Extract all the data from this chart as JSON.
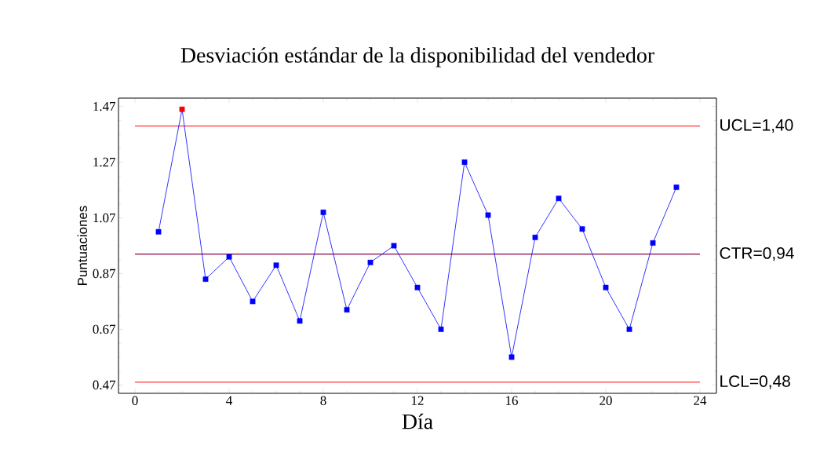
{
  "chart_data": {
    "type": "line",
    "title": "Desviación estándar de la disponibilidad del vendedor",
    "xlabel": "Día",
    "ylabel": "Puntuaciones",
    "x": [
      1,
      2,
      3,
      4,
      5,
      6,
      7,
      8,
      9,
      10,
      11,
      12,
      13,
      14,
      15,
      16,
      17,
      18,
      19,
      20,
      21,
      22,
      23
    ],
    "series": [
      {
        "color": "#0000ff",
        "colors": [
          "#0000ff",
          "#ff0000",
          "#0000ff",
          "#0000ff",
          "#0000ff",
          "#0000ff",
          "#0000ff",
          "#0000ff",
          "#0000ff",
          "#0000ff",
          "#0000ff",
          "#0000ff",
          "#0000ff",
          "#0000ff",
          "#0000ff",
          "#0000ff",
          "#0000ff",
          "#0000ff",
          "#0000ff",
          "#0000ff",
          "#0000ff",
          "#0000ff",
          "#0000ff"
        ],
        "values": [
          1.02,
          1.46,
          0.85,
          0.93,
          0.77,
          0.9,
          0.7,
          1.09,
          0.74,
          0.91,
          0.97,
          0.82,
          0.67,
          1.27,
          1.08,
          0.57,
          1.0,
          1.14,
          1.03,
          0.82,
          0.67,
          0.98,
          1.18
        ]
      }
    ],
    "xlim": [
      -0.7,
      24.7
    ],
    "ylim": [
      0.44,
      1.5
    ],
    "xticks": [
      0,
      4,
      8,
      12,
      16,
      20,
      24
    ],
    "yticks": [
      0.47,
      0.67,
      0.87,
      1.07,
      1.27,
      1.47
    ],
    "ref_lines": [
      {
        "axis": "y",
        "value": 1.4,
        "label": "UCL=1,40",
        "color": "#ff0000"
      },
      {
        "axis": "y",
        "value": 0.94,
        "label": "CTR=0,94",
        "color": "#800040"
      },
      {
        "axis": "y",
        "value": 0.48,
        "label": "LCL=0,48",
        "color": "#ff0000"
      }
    ],
    "marker": "square",
    "line_style": "solid",
    "grid": false
  }
}
